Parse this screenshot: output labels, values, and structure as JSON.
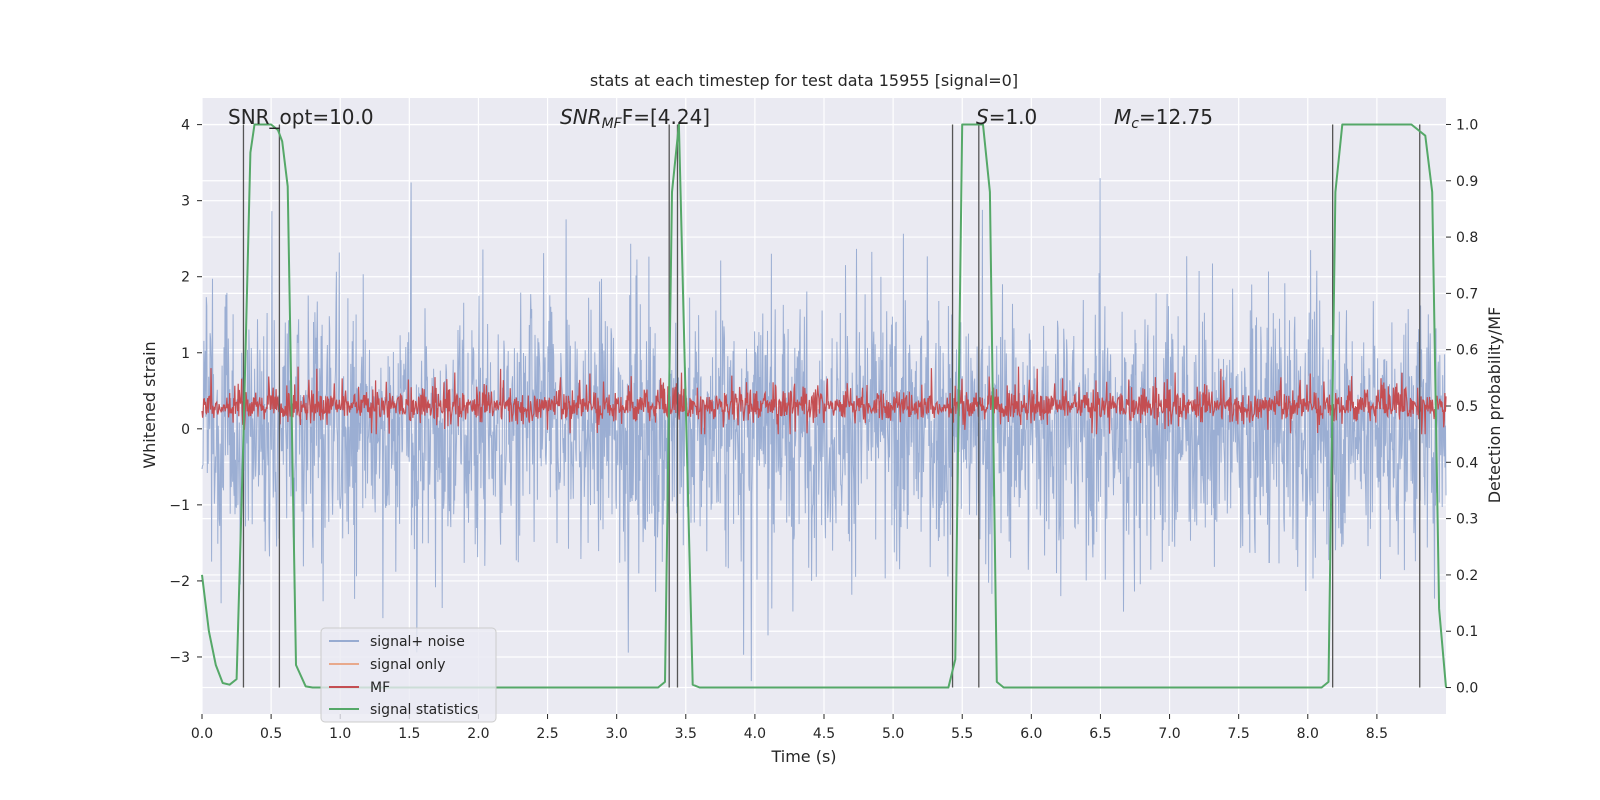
{
  "chart_data": {
    "type": "line",
    "title": "stats at each timestep for test data 15955 [signal=0]",
    "xlabel": "Time (s)",
    "ylabel_left": "Whitened strain",
    "ylabel_right": "Detection probability/MF",
    "xlim": [
      0,
      9.0
    ],
    "ylim_left": [
      -3.75,
      4.35
    ],
    "ylim_right": [
      -0.047,
      1.047
    ],
    "x_ticks": [
      "0.0",
      "0.5",
      "1.0",
      "1.5",
      "2.0",
      "2.5",
      "3.0",
      "3.5",
      "4.0",
      "4.5",
      "5.0",
      "5.5",
      "6.0",
      "6.5",
      "7.0",
      "7.5",
      "8.0",
      "8.5"
    ],
    "x_tick_values": [
      0,
      0.5,
      1,
      1.5,
      2,
      2.5,
      3,
      3.5,
      4,
      4.5,
      5,
      5.5,
      6,
      6.5,
      7,
      7.5,
      8,
      8.5
    ],
    "y_left_ticks": [
      "4",
      "3",
      "2",
      "1",
      "0",
      "−1",
      "−2",
      "−3"
    ],
    "y_left_tick_values": [
      4,
      3,
      2,
      1,
      0,
      -1,
      -2,
      -3
    ],
    "y_right_ticks": [
      "1.0",
      "0.9",
      "0.8",
      "0.7",
      "0.6",
      "0.5",
      "0.4",
      "0.3",
      "0.2",
      "0.1",
      "0.0"
    ],
    "y_right_tick_values": [
      1.0,
      0.9,
      0.8,
      0.7,
      0.6,
      0.5,
      0.4,
      0.3,
      0.2,
      0.1,
      0.0
    ],
    "annotations": {
      "snr_opt": "SNR_opt=10.0",
      "snr_mf_sym": "SNR",
      "snr_mf_sub": "MF",
      "snr_mf_rest": "F=[4.24]",
      "s_sym": "S",
      "s_rest": "=1.0",
      "mc_sym": "M",
      "mc_sub": "c",
      "mc_rest": "=12.75"
    },
    "legend": {
      "location": "lower-left",
      "entries": [
        "signal+ noise",
        "signal only",
        "MF",
        "signal statistics"
      ]
    },
    "series": [
      {
        "name": "signal+ noise",
        "axis": "left",
        "color": "#97abd1",
        "description_range": [
          -3.4,
          3.6
        ]
      },
      {
        "name": "signal only",
        "axis": "left",
        "color": "#e8a98c",
        "values": []
      },
      {
        "name": "MF",
        "axis": "right",
        "color": "#c44e52",
        "description_range": [
          0.45,
          0.59
        ]
      },
      {
        "name": "signal statistics",
        "axis": "right",
        "color": "#55a868",
        "x": [
          0.0,
          0.05,
          0.1,
          0.15,
          0.2,
          0.25,
          0.3,
          0.35,
          0.38,
          0.42,
          0.5,
          0.55,
          0.58,
          0.62,
          0.68,
          0.75,
          0.8,
          1.5,
          2.5,
          3.3,
          3.35,
          3.4,
          3.45,
          3.5,
          3.55,
          3.6,
          4.0,
          5.0,
          5.4,
          5.45,
          5.5,
          5.55,
          5.6,
          5.65,
          5.7,
          5.75,
          5.8,
          6.5,
          7.5,
          8.1,
          8.15,
          8.2,
          8.25,
          8.35,
          8.5,
          8.75,
          8.8,
          8.85,
          8.9,
          8.95,
          9.0
        ],
        "values": [
          0.2,
          0.1,
          0.04,
          0.008,
          0.005,
          0.015,
          0.45,
          0.95,
          1.0,
          1.0,
          1.0,
          0.99,
          0.97,
          0.89,
          0.04,
          0.002,
          0.0,
          0.0,
          0.0,
          0.0,
          0.01,
          0.88,
          1.0,
          0.5,
          0.005,
          0.0,
          0.0,
          0.0,
          0.0,
          0.05,
          1.0,
          1.0,
          1.0,
          1.0,
          0.88,
          0.01,
          0.0,
          0.0,
          0.0,
          0.0,
          0.01,
          0.88,
          1.0,
          1.0,
          1.0,
          1.0,
          0.99,
          0.98,
          0.88,
          0.14,
          0.0
        ]
      }
    ],
    "vertical_lines_s": [
      0.3,
      0.56,
      3.38,
      3.44,
      5.43,
      5.62,
      8.18,
      8.81
    ],
    "colors": {
      "background": "#eaeaf2",
      "grid": "#ffffff",
      "vline": "#555555"
    }
  }
}
